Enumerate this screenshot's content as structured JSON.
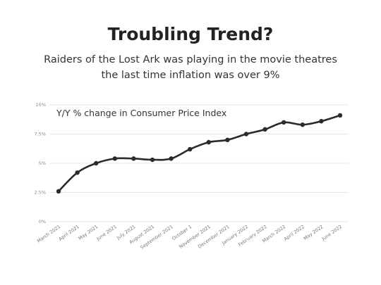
{
  "header": {
    "title": "Troubling Trend?",
    "subtitle_line1": "Raiders of the Lost Ark was playing in the movie theatres",
    "subtitle_line2": "the last time inflation was over 9%"
  },
  "chart_data": {
    "type": "line",
    "title": "Troubling Trend?",
    "ylabel": "Y/Y % change in Consumer Price Index",
    "xlabel": "",
    "categories": [
      "March 2021",
      "April 2021",
      "May 2021",
      "June 2021",
      "July 2021",
      "August 2021",
      "September 2021",
      "October 1",
      "November 2021",
      "December 2021",
      "January 2022",
      "February 2022",
      "March 2022",
      "April 2022",
      "May 2022",
      "June 2022"
    ],
    "series": [
      {
        "values": [
          2.6,
          4.2,
          5.0,
          5.4,
          5.4,
          5.3,
          5.4,
          6.2,
          6.8,
          7.0,
          7.5,
          7.9,
          8.5,
          8.3,
          8.6,
          9.1
        ]
      }
    ],
    "ylim": [
      0,
      10
    ],
    "yticks": [
      {
        "value": 0,
        "label": "0%"
      },
      {
        "value": 2.5,
        "label": "2.5%"
      },
      {
        "value": 5,
        "label": "5%"
      },
      {
        "value": 7.5,
        "label": "7.5%"
      },
      {
        "value": 10,
        "label": "10%"
      }
    ],
    "grid": true,
    "line_color": "#2b2b2b",
    "grid_color": "#e6e6e6"
  }
}
